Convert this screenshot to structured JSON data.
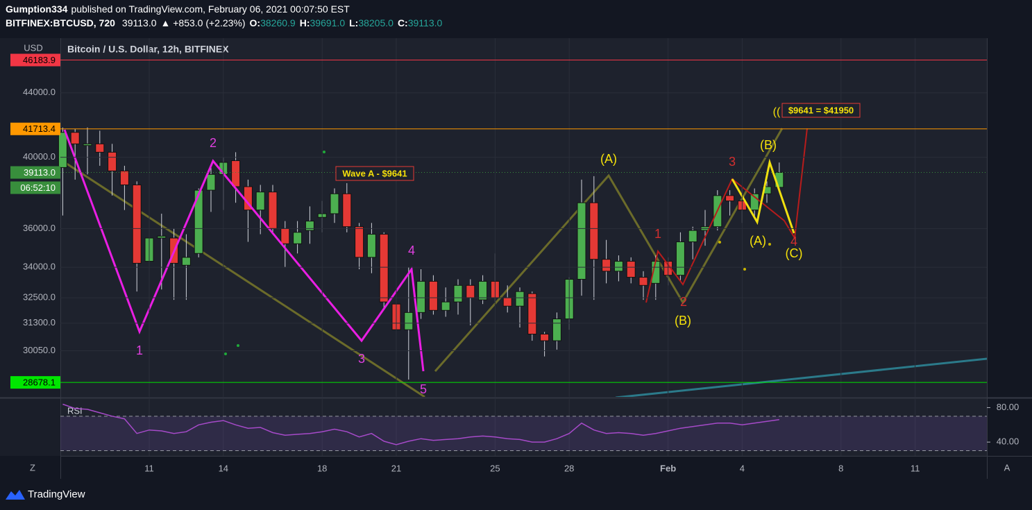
{
  "header": {
    "author": "Gumption334",
    "published": "published on TradingView.com, February 06, 2021 00:07:50 EST",
    "symbol": "BITFINEX:BTCUSD, 720",
    "last": "39113.0",
    "change": "▲ +853.0 (+2.23%)",
    "ohlc": [
      {
        "label": "O:",
        "value": "38260.9"
      },
      {
        "label": "H:",
        "value": "39691.0"
      },
      {
        "label": "L:",
        "value": "38205.0"
      },
      {
        "label": "C:",
        "value": "39113.0"
      }
    ]
  },
  "chart_data": {
    "type": "candlestick",
    "title": "Bitcoin / U.S. Dollar, 12h, BITFINEX",
    "currency": "USD",
    "log_scale": true,
    "grid": true,
    "up_color": "#4caf50",
    "down_color": "#e53935",
    "categories": [
      null,
      null,
      null,
      null,
      null,
      null,
      null,
      "11",
      null,
      null,
      null,
      null,
      null,
      "14",
      null,
      null,
      null,
      null,
      null,
      null,
      null,
      "18",
      null,
      null,
      null,
      null,
      null,
      "21",
      null,
      null,
      null,
      null,
      null,
      null,
      null,
      "25",
      null,
      null,
      null,
      null,
      null,
      "28",
      null,
      null,
      null,
      null,
      null,
      null,
      null,
      "Feb",
      null,
      null,
      null,
      null,
      null,
      "4",
      null,
      null,
      null,
      null,
      null,
      null,
      null,
      "8",
      null,
      null,
      null,
      null,
      null,
      "11",
      null,
      null,
      null,
      null,
      null
    ],
    "open": [
      39400,
      41500,
      40700,
      40800,
      40300,
      39200,
      38400,
      34300,
      35500,
      35500,
      34100,
      34700,
      38100,
      39000,
      39800,
      38300,
      37000,
      38000,
      36000,
      35200,
      35900,
      36600,
      36800,
      37900,
      36100,
      34500,
      35700,
      32200,
      31000,
      31800,
      33300,
      31900,
      32300,
      33100,
      32400,
      33300,
      32500,
      32100,
      32700,
      30800,
      30500,
      31500,
      33400,
      37400,
      34400,
      33800,
      34300,
      33500,
      33200,
      34300,
      33600,
      35300,
      35900,
      36100,
      37800,
      37500,
      37000,
      37900,
      38260.9,
      null,
      null,
      null,
      null,
      null,
      null,
      null,
      null,
      null,
      null,
      null,
      null,
      null,
      null,
      null,
      null
    ],
    "high": [
      41800,
      41700,
      41800,
      41600,
      40800,
      39500,
      38600,
      36000,
      36800,
      36000,
      35700,
      38200,
      39600,
      40000,
      40300,
      38700,
      38400,
      38400,
      36400,
      36400,
      37200,
      37500,
      38200,
      38500,
      36300,
      36300,
      35800,
      32800,
      34000,
      33900,
      33600,
      33000,
      33400,
      33400,
      33600,
      34700,
      33100,
      33000,
      32800,
      30900,
      31800,
      33500,
      38700,
      38900,
      35400,
      34600,
      34500,
      33800,
      34600,
      34500,
      35800,
      36100,
      37000,
      38100,
      38100,
      38300,
      38200,
      38600,
      39691,
      null,
      null,
      null,
      null,
      null,
      null,
      null,
      null,
      null,
      null,
      null,
      null,
      null,
      null,
      null,
      null
    ],
    "low": [
      36700,
      38700,
      39000,
      39500,
      37800,
      37000,
      32800,
      32700,
      32900,
      32400,
      32400,
      34500,
      36900,
      37000,
      37400,
      35300,
      35700,
      35800,
      34000,
      34700,
      35200,
      35800,
      36300,
      35800,
      33900,
      33700,
      32000,
      30300,
      28800,
      31500,
      31700,
      31600,
      31700,
      31200,
      32200,
      32300,
      31800,
      31100,
      30500,
      29800,
      30100,
      31000,
      32600,
      32400,
      33200,
      33300,
      33200,
      32400,
      32400,
      33100,
      33300,
      34400,
      35100,
      35900,
      36700,
      36300,
      36600,
      37400,
      38205,
      null,
      null,
      null,
      null,
      null,
      null,
      null,
      null,
      null,
      null,
      null,
      null,
      null,
      null,
      null,
      null
    ],
    "close": [
      41500,
      40800,
      40800,
      40300,
      39200,
      38400,
      34200,
      35500,
      35600,
      34200,
      34500,
      38100,
      39000,
      39700,
      38300,
      37000,
      38000,
      36000,
      35200,
      35800,
      36400,
      36800,
      37900,
      36100,
      34500,
      35700,
      32300,
      31000,
      31800,
      33300,
      31900,
      32300,
      33100,
      32500,
      33300,
      32500,
      32100,
      32800,
      30800,
      30500,
      31500,
      33400,
      37400,
      34400,
      33800,
      34300,
      33500,
      33100,
      34300,
      33600,
      35300,
      35900,
      36100,
      37800,
      37500,
      37000,
      37900,
      38300,
      39113,
      null,
      null,
      null,
      null,
      null,
      null,
      null,
      null,
      null,
      null,
      null,
      null,
      null,
      null,
      null,
      null
    ],
    "ylim": [
      28070,
      47700
    ],
    "yticks": [
      {
        "value": 44000,
        "label": "44000.0"
      },
      {
        "value": 40000,
        "label": "40000.0"
      },
      {
        "value": 36000,
        "label": "36000.0"
      },
      {
        "value": 34000,
        "label": "34000.0"
      },
      {
        "value": 32500,
        "label": "32500.0"
      },
      {
        "value": 31300,
        "label": "31300.0"
      },
      {
        "value": 30050,
        "label": "30050.0"
      }
    ],
    "price_lines": [
      {
        "price": 46183.9,
        "color": "#f23645"
      },
      {
        "price": 41713.4,
        "color": "#ff9800"
      },
      {
        "price": {
          "value": 39113,
          "label": "39113.0"
        },
        "color": "#388e3c"
      },
      {
        "price": 28678.1,
        "color": "#00e600"
      }
    ],
    "countdown": "06:52:10",
    "annotations": [
      {
        "text": "1",
        "color": "#e040e0"
      },
      {
        "text": "2",
        "color": "#e040e0"
      },
      {
        "text": "3",
        "color": "#e040e0"
      },
      {
        "text": "4",
        "color": "#e040e0"
      },
      {
        "text": "5",
        "color": "#e040e0"
      },
      {
        "text": "(A)",
        "color": "#f5e10a"
      },
      {
        "text": "(B)",
        "color": "#f5e10a"
      },
      {
        "text": "(A)",
        "color": "#f5e10a"
      },
      {
        "text": "(B)",
        "color": "#f5e10a"
      },
      {
        "text": "(C)",
        "color": "#f5e10a"
      },
      {
        "text": "((",
        "color": "#f5e10a"
      },
      {
        "text": "1",
        "color": "#d32f2f"
      },
      {
        "text": "2",
        "color": "#d32f2f"
      },
      {
        "text": "3",
        "color": "#d32f2f"
      },
      {
        "text": "4",
        "color": "#d32f2f"
      },
      {
        "text": "Wave A - $9641",
        "color": "#f5e10a",
        "style": "box"
      },
      {
        "text": "$9641 = $41950",
        "color": "#f5e10a",
        "style": "box"
      }
    ],
    "rsi": {
      "name": "RSI",
      "color": "#a64ac9",
      "values": [
        84,
        79,
        78,
        74,
        70,
        67,
        50,
        54,
        53,
        50,
        52,
        60,
        63,
        65,
        60,
        56,
        57,
        51,
        48,
        49,
        50,
        52,
        55,
        52,
        46,
        50,
        41,
        37,
        41,
        44,
        42,
        43,
        44,
        46,
        47,
        46,
        44,
        43,
        40,
        40,
        44,
        50,
        62,
        54,
        50,
        51,
        50,
        48,
        50,
        53,
        56,
        58,
        60,
        62,
        62,
        60,
        62,
        64,
        66,
        null,
        null,
        null,
        null,
        null,
        null,
        null,
        null,
        null,
        null,
        null,
        null,
        null,
        null,
        null,
        null
      ],
      "ylim": [
        24,
        90
      ],
      "yticks": [
        {
          "value": 80,
          "label": "80.00"
        },
        {
          "value": 40,
          "label": "40.00"
        }
      ],
      "bands": [
        70,
        30
      ]
    }
  },
  "footer": {
    "brand": "TradingView",
    "left_button": "Z",
    "right_button": "A"
  }
}
